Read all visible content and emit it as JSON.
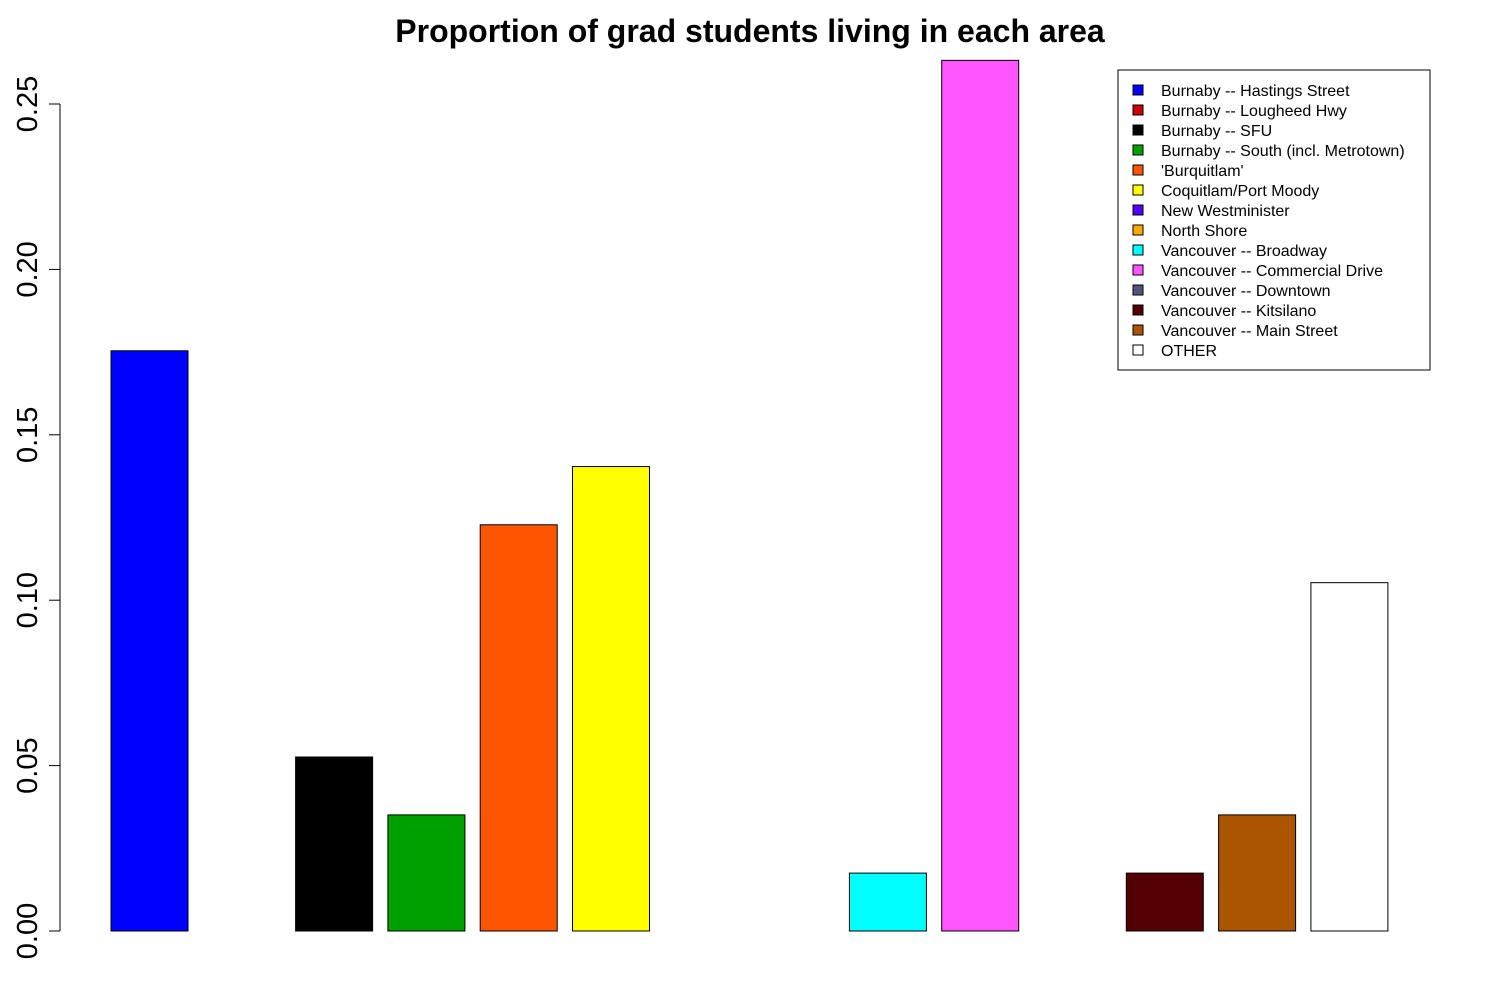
{
  "chart_data": {
    "type": "bar",
    "title": "Proportion of grad students living in each area",
    "xlabel": "",
    "ylabel": "",
    "ylim": [
      0,
      0.26
    ],
    "yticks": [
      "0.00",
      "0.05",
      "0.10",
      "0.15",
      "0.20",
      "0.25"
    ],
    "grid": false,
    "legend_position": "top-right",
    "categories": [
      "Burnaby -- Hastings Street",
      "Burnaby -- Lougheed Hwy",
      "Burnaby -- SFU",
      "Burnaby -- South (incl. Metrotown)",
      "'Burquitlam'",
      "Coquitlam/Port Moody",
      "New Westminister",
      "North Shore",
      "Vancouver -- Broadway",
      "Vancouver -- Commercial Drive",
      "Vancouver -- Downtown",
      "Vancouver -- Kitsilano",
      "Vancouver -- Main Street",
      "OTHER"
    ],
    "values": [
      0.1754,
      0,
      0.0526,
      0.0351,
      0.1228,
      0.1404,
      0,
      0,
      0.0175,
      0.2632,
      0,
      0.0175,
      0.0351,
      0.1053
    ],
    "colors": [
      "#0000ff",
      "#cc0000",
      "#000000",
      "#00a000",
      "#ff5500",
      "#ffff00",
      "#5500ff",
      "#ffaa00",
      "#00ffff",
      "#ff55ff",
      "#555580",
      "#550000",
      "#aa5500",
      "#ffffff"
    ]
  }
}
